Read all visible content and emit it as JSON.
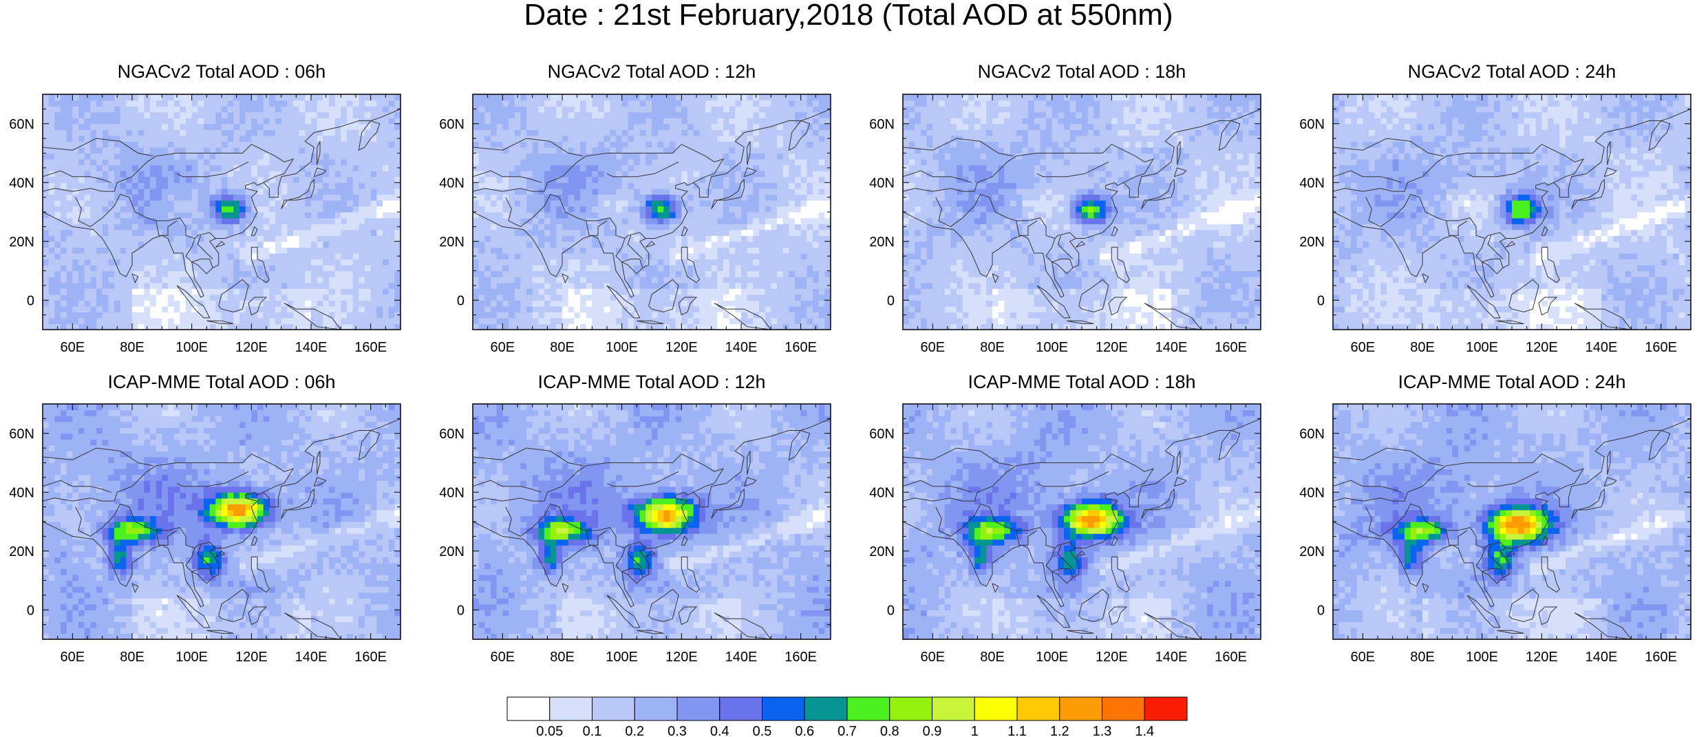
{
  "title": "Date : 21st February,2018 (Total AOD at 550nm)",
  "axes": {
    "lon_ticks": [
      "60E",
      "80E",
      "100E",
      "120E",
      "140E",
      "160E"
    ],
    "lat_ticks": [
      "60N",
      "40N",
      "20N",
      "0"
    ],
    "lon_range": [
      50,
      170
    ],
    "lat_range": [
      -10,
      70
    ]
  },
  "panels": [
    {
      "title": "NGACv2 Total AOD : 06h",
      "model": "NGACv2",
      "hour": 6
    },
    {
      "title": "NGACv2 Total AOD : 12h",
      "model": "NGACv2",
      "hour": 12
    },
    {
      "title": "NGACv2 Total AOD : 18h",
      "model": "NGACv2",
      "hour": 18
    },
    {
      "title": "NGACv2 Total AOD : 24h",
      "model": "NGACv2",
      "hour": 24
    },
    {
      "title": "ICAP-MME Total AOD : 06h",
      "model": "ICAP-MME",
      "hour": 6
    },
    {
      "title": "ICAP-MME Total AOD : 12h",
      "model": "ICAP-MME",
      "hour": 12
    },
    {
      "title": "ICAP-MME Total AOD : 18h",
      "model": "ICAP-MME",
      "hour": 18
    },
    {
      "title": "ICAP-MME Total AOD : 24h",
      "model": "ICAP-MME",
      "hour": 24
    }
  ],
  "colorbar": {
    "labels": [
      "0.05",
      "0.1",
      "0.2",
      "0.3",
      "0.4",
      "0.5",
      "0.6",
      "0.7",
      "0.8",
      "0.9",
      "1",
      "1.1",
      "1.2",
      "1.3",
      "1.4"
    ],
    "colors": [
      "#ffffff",
      "#d6e0fb",
      "#bac8f8",
      "#9eb3f5",
      "#8196f1",
      "#6b73ea",
      "#0a64f0",
      "#079593",
      "#4cf021",
      "#93f00f",
      "#c8f43c",
      "#fdfd04",
      "#fdca04",
      "#fc9c04",
      "#fb7404",
      "#fb1e07"
    ]
  }
}
